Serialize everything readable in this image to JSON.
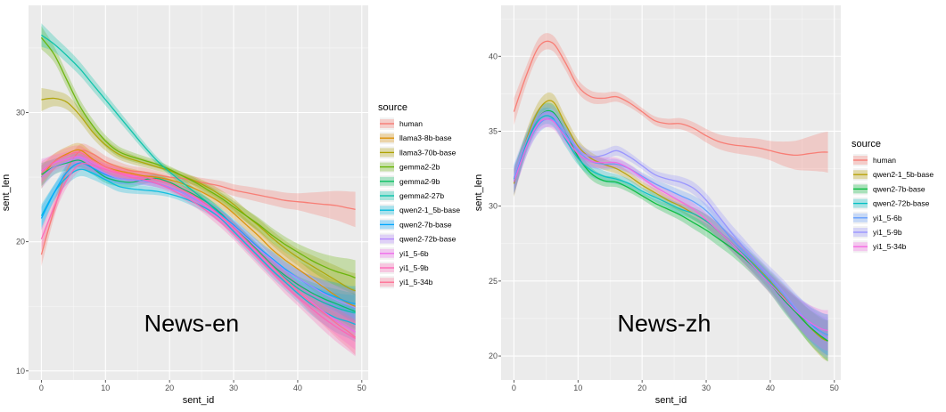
{
  "chart_data": [
    {
      "type": "line",
      "annotation": "News-en",
      "xlabel": "sent_id",
      "ylabel": "sent_len",
      "xlim": [
        -2,
        51
      ],
      "ylim": [
        9.3,
        38.3
      ],
      "xticks": [
        0,
        10,
        20,
        30,
        40,
        50
      ],
      "yticks": [
        10,
        20,
        30
      ],
      "legend": {
        "title": "source",
        "placement": "right"
      },
      "grid": true,
      "x": [
        0,
        2,
        4,
        6,
        8,
        10,
        12,
        14,
        16,
        18,
        20,
        22,
        24,
        26,
        28,
        30,
        32,
        34,
        36,
        38,
        40,
        42,
        44,
        46,
        48,
        49
      ],
      "series": [
        {
          "name": "human",
          "color": "#F8766D",
          "values": [
            19.0,
            22.5,
            25.5,
            27.0,
            26.8,
            26.2,
            25.8,
            25.5,
            25.4,
            25.2,
            25.0,
            24.9,
            24.7,
            24.5,
            24.3,
            24.0,
            23.8,
            23.6,
            23.4,
            23.2,
            23.1,
            23.0,
            22.9,
            22.8,
            22.6,
            22.5
          ]
        },
        {
          "name": "llama3-8b-base",
          "color": "#DB8E00",
          "values": [
            25.0,
            26.2,
            26.8,
            27.1,
            26.4,
            25.8,
            25.5,
            25.3,
            25.1,
            25.0,
            24.8,
            24.5,
            24.1,
            23.6,
            23.0,
            22.2,
            21.3,
            20.4,
            19.4,
            18.6,
            17.9,
            17.2,
            16.5,
            15.8,
            15.2,
            15.0
          ]
        },
        {
          "name": "llama3-70b-base",
          "color": "#AEA200",
          "values": [
            31.0,
            31.1,
            30.8,
            29.8,
            28.5,
            27.5,
            26.8,
            26.4,
            26.1,
            25.8,
            25.5,
            25.1,
            24.7,
            24.2,
            23.6,
            22.9,
            22.0,
            21.2,
            20.3,
            19.5,
            18.8,
            18.2,
            17.6,
            17.0,
            16.4,
            16.2
          ]
        },
        {
          "name": "gemma2-2b",
          "color": "#64B200",
          "values": [
            35.8,
            34.5,
            32.5,
            30.5,
            29.0,
            27.8,
            27.0,
            26.6,
            26.3,
            26.0,
            25.6,
            25.1,
            24.6,
            24.0,
            23.4,
            22.7,
            22.0,
            21.3,
            20.5,
            19.8,
            19.2,
            18.6,
            18.1,
            17.7,
            17.4,
            17.2
          ]
        },
        {
          "name": "gemma2-9b",
          "color": "#00BD5C",
          "values": [
            25.2,
            25.8,
            26.1,
            26.3,
            25.7,
            25.0,
            24.7,
            24.6,
            24.8,
            24.9,
            24.6,
            24.1,
            23.6,
            23.0,
            22.2,
            21.2,
            20.2,
            19.2,
            18.2,
            17.4,
            16.7,
            16.1,
            15.6,
            15.2,
            14.8,
            14.6
          ]
        },
        {
          "name": "gemma2-27b",
          "color": "#00C1A7",
          "values": [
            36.0,
            35.3,
            34.4,
            33.4,
            32.2,
            31.0,
            29.8,
            28.6,
            27.4,
            26.3,
            25.4,
            24.6,
            23.8,
            23.0,
            22.1,
            21.1,
            20.1,
            19.1,
            18.1,
            17.2,
            16.4,
            15.8,
            15.3,
            14.9,
            14.6,
            14.5
          ]
        },
        {
          "name": "qwen2-1_5b-base",
          "color": "#00BADE",
          "values": [
            22.0,
            23.8,
            25.0,
            25.6,
            25.3,
            24.8,
            24.3,
            24.1,
            24.0,
            23.9,
            23.7,
            23.4,
            23.0,
            22.5,
            21.8,
            20.8,
            19.8,
            18.8,
            17.8,
            16.9,
            16.0,
            15.2,
            14.6,
            14.1,
            13.8,
            13.6
          ]
        },
        {
          "name": "qwen2-7b-base",
          "color": "#00A6FF",
          "values": [
            21.8,
            23.8,
            25.4,
            26.1,
            25.7,
            25.2,
            24.9,
            24.8,
            24.7,
            24.5,
            24.2,
            23.8,
            23.3,
            22.8,
            22.1,
            21.3,
            20.4,
            19.5,
            18.7,
            17.9,
            17.2,
            16.6,
            16.1,
            15.7,
            15.3,
            15.2
          ]
        },
        {
          "name": "qwen2-72b-base",
          "color": "#B385FF",
          "values": [
            25.0,
            25.8,
            26.2,
            26.5,
            25.9,
            25.3,
            24.9,
            24.8,
            24.7,
            24.5,
            24.2,
            23.8,
            23.3,
            22.7,
            22.0,
            21.2,
            20.3,
            19.4,
            18.6,
            17.8,
            17.2,
            16.6,
            16.0,
            15.5,
            15.1,
            14.9
          ]
        },
        {
          "name": "yi1_5-6b",
          "color": "#EF67EB",
          "values": [
            25.5,
            26.1,
            26.4,
            26.6,
            26.1,
            25.6,
            25.3,
            25.1,
            25.0,
            24.8,
            24.5,
            24.0,
            23.4,
            22.7,
            21.9,
            21.0,
            20.0,
            19.0,
            18.0,
            17.1,
            16.2,
            15.4,
            14.6,
            13.9,
            13.3,
            13.0
          ]
        },
        {
          "name": "yi1_5-9b",
          "color": "#FF63B6",
          "values": [
            20.2,
            22.7,
            24.8,
            26.0,
            25.9,
            25.6,
            25.3,
            25.0,
            24.8,
            24.5,
            24.1,
            23.6,
            23.0,
            22.3,
            21.5,
            20.6,
            19.6,
            18.6,
            17.6,
            16.6,
            15.7,
            14.9,
            14.1,
            13.4,
            12.8,
            12.5
          ]
        },
        {
          "name": "yi1_5-34b",
          "color": "#FF6C91",
          "values": [
            25.3,
            26.2,
            26.7,
            26.9,
            26.3,
            25.8,
            25.4,
            25.2,
            25.0,
            24.8,
            24.5,
            24.0,
            23.5,
            22.8,
            22.0,
            21.1,
            20.1,
            19.1,
            18.1,
            17.1,
            16.2,
            15.3,
            14.5,
            13.7,
            13.0,
            12.6
          ]
        }
      ]
    },
    {
      "type": "line",
      "annotation": "News-zh",
      "xlabel": "sent_id",
      "ylabel": "sent_len",
      "xlim": [
        -2,
        51
      ],
      "ylim": [
        18.4,
        43.4
      ],
      "xticks": [
        0,
        10,
        20,
        30,
        40,
        50
      ],
      "yticks": [
        20,
        25,
        30,
        35,
        40
      ],
      "legend": {
        "title": "source",
        "placement": "right"
      },
      "grid": true,
      "x": [
        0,
        2,
        4,
        6,
        8,
        10,
        12,
        14,
        16,
        18,
        20,
        22,
        24,
        26,
        28,
        30,
        32,
        34,
        36,
        38,
        40,
        42,
        44,
        46,
        48,
        49
      ],
      "series": [
        {
          "name": "human",
          "color": "#F8766D",
          "values": [
            36.3,
            38.8,
            40.7,
            40.9,
            39.6,
            38.0,
            37.3,
            37.2,
            37.3,
            36.9,
            36.3,
            35.7,
            35.5,
            35.5,
            35.2,
            34.7,
            34.3,
            34.1,
            34.0,
            33.9,
            33.7,
            33.5,
            33.4,
            33.5,
            33.6,
            33.6
          ]
        },
        {
          "name": "qwen2-1_5b-base",
          "color": "#B79F00",
          "values": [
            31.5,
            34.5,
            36.5,
            37.0,
            35.5,
            34.0,
            33.2,
            32.8,
            32.5,
            32.0,
            31.4,
            30.9,
            30.4,
            30.0,
            29.5,
            29.0,
            28.3,
            27.5,
            26.7,
            25.9,
            25.0,
            24.0,
            23.0,
            22.0,
            21.2,
            21.0
          ]
        },
        {
          "name": "qwen2-7b-base",
          "color": "#00BA38",
          "values": [
            31.6,
            34.3,
            36.0,
            36.3,
            35.0,
            33.3,
            32.2,
            31.7,
            31.6,
            31.2,
            30.7,
            30.2,
            29.8,
            29.4,
            28.9,
            28.4,
            27.8,
            27.2,
            26.5,
            25.7,
            24.8,
            23.8,
            22.9,
            22.0,
            21.3,
            21.0
          ]
        },
        {
          "name": "qwen2-72b-base",
          "color": "#00BFC4",
          "values": [
            31.8,
            34.2,
            35.8,
            35.9,
            34.5,
            33.2,
            32.4,
            32.0,
            31.8,
            31.5,
            31.0,
            30.6,
            30.2,
            29.8,
            29.5,
            29.0,
            28.3,
            27.5,
            26.7,
            25.8,
            24.9,
            23.9,
            23.0,
            22.2,
            21.6,
            21.4
          ]
        },
        {
          "name": "yi1_5-6b",
          "color": "#619CFF",
          "values": [
            31.7,
            34.0,
            35.5,
            35.8,
            34.8,
            33.7,
            33.0,
            32.8,
            32.8,
            32.5,
            32.0,
            31.5,
            31.1,
            30.7,
            30.3,
            29.7,
            28.8,
            27.8,
            26.9,
            26.0,
            25.1,
            24.1,
            23.1,
            22.3,
            21.6,
            21.4
          ]
        },
        {
          "name": "yi1_5-9b",
          "color": "#9590FF",
          "values": [
            31.9,
            34.4,
            36.0,
            36.2,
            35.0,
            33.8,
            33.3,
            33.4,
            33.7,
            33.3,
            32.7,
            32.1,
            31.8,
            31.6,
            31.2,
            30.4,
            29.3,
            28.2,
            27.2,
            26.2,
            25.3,
            24.3,
            23.2,
            22.2,
            21.4,
            21.2
          ]
        },
        {
          "name": "yi1_5-34b",
          "color": "#F564E3",
          "values": [
            31.6,
            34.0,
            35.6,
            35.7,
            34.6,
            33.5,
            33.0,
            32.9,
            32.9,
            32.5,
            31.9,
            31.3,
            30.8,
            30.3,
            29.8,
            29.1,
            28.3,
            27.5,
            26.6,
            25.7,
            24.8,
            23.9,
            23.0,
            22.3,
            21.8,
            21.7
          ]
        }
      ]
    }
  ]
}
